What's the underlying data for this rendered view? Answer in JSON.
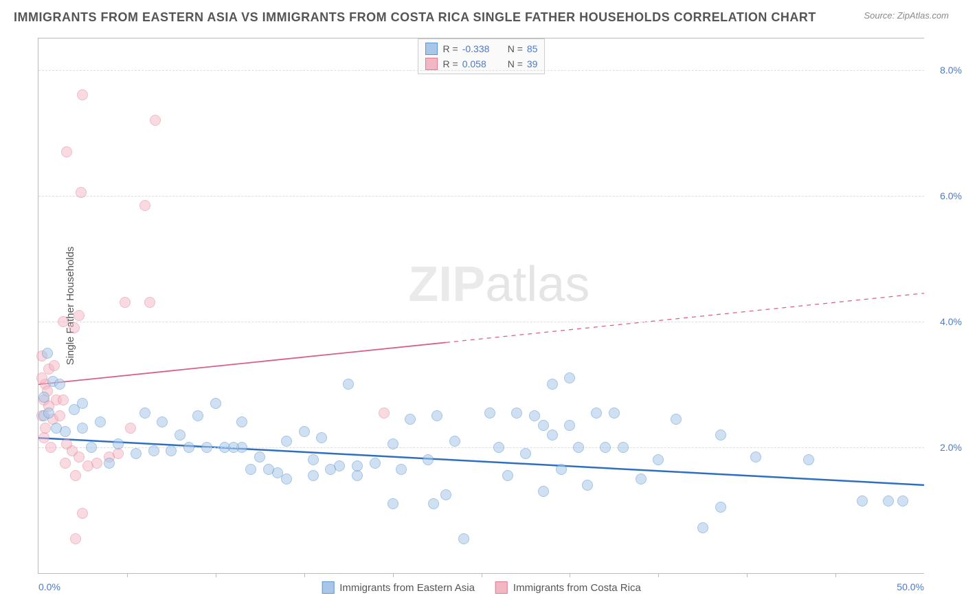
{
  "title": "IMMIGRANTS FROM EASTERN ASIA VS IMMIGRANTS FROM COSTA RICA SINGLE FATHER HOUSEHOLDS CORRELATION CHART",
  "source_label": "Source: ZipAtlas.com",
  "y_axis_label": "Single Father Households",
  "watermark_bold": "ZIP",
  "watermark_thin": "atlas",
  "chart": {
    "type": "scatter",
    "background_color": "#ffffff",
    "grid_color": "#dddddd",
    "axis_color": "#bbbbbb",
    "tick_label_color": "#4a7ac8",
    "title_color": "#555555",
    "title_fontsize": 18,
    "label_fontsize": 15,
    "tick_fontsize": 14,
    "xlim": [
      0,
      50
    ],
    "ylim": [
      0,
      8.5
    ],
    "x_ticks": [
      0,
      50
    ],
    "x_tick_labels": [
      "0.0%",
      "50.0%"
    ],
    "x_minor_ticks": [
      5,
      10,
      15,
      20,
      25,
      30,
      35,
      40,
      45
    ],
    "y_ticks": [
      2,
      4,
      6,
      8
    ],
    "y_tick_labels": [
      "2.0%",
      "4.0%",
      "6.0%",
      "8.0%"
    ],
    "marker_radius": 8,
    "marker_stroke_width": 1.2,
    "series": [
      {
        "name": "Immigrants from Eastern Asia",
        "fill_color": "#a8c7e8",
        "fill_opacity": 0.55,
        "stroke_color": "#5e96d1",
        "r_value": "-0.338",
        "n_value": "85",
        "trend": {
          "x1": 0,
          "y1": 2.15,
          "x2": 50,
          "y2": 1.4,
          "color": "#2f6fc2",
          "width": 2.5,
          "dashed_after_x": null
        },
        "points": [
          [
            37.5,
            0.72
          ],
          [
            38.5,
            1.05
          ],
          [
            46.5,
            1.15
          ],
          [
            48.0,
            1.15
          ],
          [
            48.8,
            1.15
          ],
          [
            24.0,
            0.55
          ],
          [
            20.0,
            1.1
          ],
          [
            22.3,
            1.1
          ],
          [
            23.0,
            1.25
          ],
          [
            28.5,
            1.3
          ],
          [
            13.5,
            1.6
          ],
          [
            14.0,
            1.5
          ],
          [
            15.5,
            1.55
          ],
          [
            17.0,
            1.7
          ],
          [
            18.0,
            1.55
          ],
          [
            5.5,
            1.9
          ],
          [
            6.5,
            1.95
          ],
          [
            7.5,
            1.95
          ],
          [
            8.5,
            2.0
          ],
          [
            9.5,
            2.0
          ],
          [
            10.5,
            2.0
          ],
          [
            11.5,
            2.0
          ],
          [
            12.5,
            1.85
          ],
          [
            12.0,
            1.65
          ],
          [
            13.0,
            1.65
          ],
          [
            15.5,
            1.8
          ],
          [
            16.5,
            1.65
          ],
          [
            18.0,
            1.7
          ],
          [
            19.0,
            1.75
          ],
          [
            20.5,
            1.65
          ],
          [
            20.0,
            2.05
          ],
          [
            22.0,
            1.8
          ],
          [
            21.0,
            2.45
          ],
          [
            22.5,
            2.5
          ],
          [
            23.5,
            2.1
          ],
          [
            25.5,
            2.55
          ],
          [
            26.0,
            2.0
          ],
          [
            27.0,
            2.55
          ],
          [
            28.0,
            2.5
          ],
          [
            29.0,
            2.2
          ],
          [
            30.0,
            2.35
          ],
          [
            31.0,
            1.4
          ],
          [
            32.0,
            2.0
          ],
          [
            33.0,
            2.0
          ],
          [
            35.0,
            1.8
          ],
          [
            38.5,
            2.2
          ],
          [
            40.5,
            1.85
          ],
          [
            43.5,
            1.8
          ],
          [
            30.0,
            3.1
          ],
          [
            17.5,
            3.0
          ],
          [
            0.3,
            2.8
          ],
          [
            0.8,
            3.05
          ],
          [
            1.2,
            3.0
          ],
          [
            0.5,
            3.5
          ],
          [
            2.5,
            2.3
          ],
          [
            3.5,
            2.4
          ],
          [
            4.5,
            2.05
          ],
          [
            4.0,
            1.75
          ],
          [
            3.0,
            2.0
          ],
          [
            1.5,
            2.25
          ],
          [
            0.3,
            2.5
          ],
          [
            0.6,
            2.55
          ],
          [
            1.0,
            2.3
          ],
          [
            2.0,
            2.6
          ],
          [
            2.5,
            2.7
          ],
          [
            9.0,
            2.5
          ],
          [
            11.0,
            2.0
          ],
          [
            14.0,
            2.1
          ],
          [
            15.0,
            2.25
          ],
          [
            16.0,
            2.15
          ],
          [
            6.0,
            2.55
          ],
          [
            7.0,
            2.4
          ],
          [
            8.0,
            2.2
          ],
          [
            10.0,
            2.7
          ],
          [
            11.5,
            2.4
          ],
          [
            31.5,
            2.55
          ],
          [
            26.5,
            1.55
          ],
          [
            27.5,
            1.9
          ],
          [
            28.5,
            2.35
          ],
          [
            32.5,
            2.55
          ],
          [
            29.5,
            1.65
          ],
          [
            34.0,
            1.5
          ],
          [
            36.0,
            2.45
          ],
          [
            29.0,
            3.0
          ],
          [
            30.5,
            2.0
          ]
        ]
      },
      {
        "name": "Immigrants from Costa Rica",
        "fill_color": "#f3b6c3",
        "fill_opacity": 0.5,
        "stroke_color": "#e27a96",
        "r_value": "0.058",
        "n_value": "39",
        "trend": {
          "x1": 0,
          "y1": 3.0,
          "x2": 50,
          "y2": 4.45,
          "color": "#d85f82",
          "width": 1.8,
          "dashed_after_x": 23
        },
        "points": [
          [
            2.5,
            7.6
          ],
          [
            6.6,
            7.2
          ],
          [
            1.6,
            6.7
          ],
          [
            2.4,
            6.05
          ],
          [
            6.0,
            5.85
          ],
          [
            4.9,
            4.3
          ],
          [
            6.3,
            4.3
          ],
          [
            2.3,
            4.1
          ],
          [
            1.4,
            4.0
          ],
          [
            2.0,
            3.9
          ],
          [
            0.2,
            3.45
          ],
          [
            0.6,
            3.25
          ],
          [
            0.9,
            3.3
          ],
          [
            0.4,
            3.0
          ],
          [
            0.3,
            2.75
          ],
          [
            0.5,
            2.9
          ],
          [
            1.0,
            2.75
          ],
          [
            1.4,
            2.75
          ],
          [
            0.6,
            2.65
          ],
          [
            0.2,
            2.5
          ],
          [
            0.8,
            2.45
          ],
          [
            1.2,
            2.5
          ],
          [
            5.2,
            2.3
          ],
          [
            1.6,
            2.05
          ],
          [
            1.9,
            1.95
          ],
          [
            2.3,
            1.85
          ],
          [
            2.8,
            1.7
          ],
          [
            3.3,
            1.75
          ],
          [
            4.0,
            1.85
          ],
          [
            4.5,
            1.9
          ],
          [
            2.1,
            1.55
          ],
          [
            1.5,
            1.75
          ],
          [
            0.3,
            2.15
          ],
          [
            0.7,
            2.0
          ],
          [
            2.5,
            0.95
          ],
          [
            2.1,
            0.55
          ],
          [
            19.5,
            2.55
          ],
          [
            0.2,
            3.1
          ],
          [
            0.4,
            2.3
          ]
        ]
      }
    ]
  },
  "legend_bottom": {
    "items": [
      {
        "label": "Immigrants from Eastern Asia",
        "fill": "#a8c7e8",
        "stroke": "#5e96d1"
      },
      {
        "label": "Immigrants from Costa Rica",
        "fill": "#f3b6c3",
        "stroke": "#e27a96"
      }
    ]
  }
}
